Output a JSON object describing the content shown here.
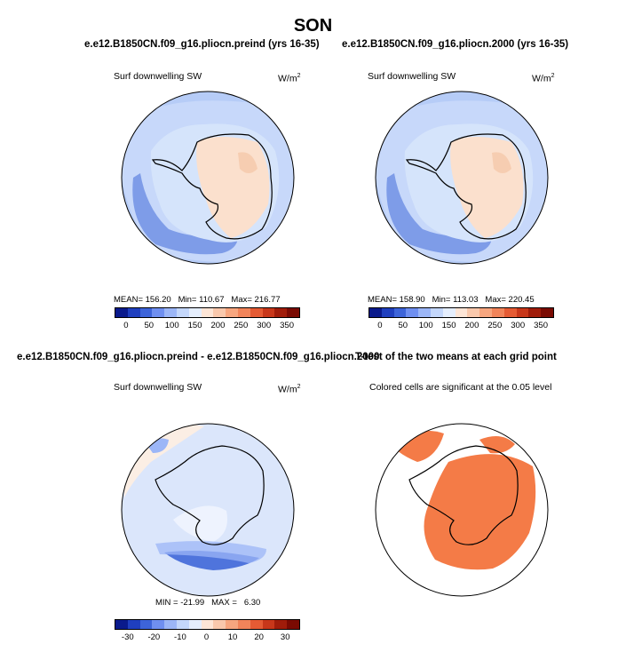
{
  "figure": {
    "title": "SON"
  },
  "chart_data": [
    {
      "type": "heatmap",
      "panel": "top-left",
      "title": "e.e12.B1850CN.f09_g16.pliocn.preind (yrs 16-35)",
      "field_label": "Surf downwelling SW",
      "units": "W/m",
      "units_superscript": "2",
      "stats": {
        "mean_label": "MEAN=",
        "mean": "156.20",
        "min_label": "Min=",
        "min": "110.67",
        "max_label": "Max=",
        "max": "216.77"
      },
      "colorbar_ticks": [
        "0",
        "50",
        "100",
        "150",
        "200",
        "250",
        "300",
        "350"
      ],
      "colorbar_range": [
        -25,
        375
      ]
    },
    {
      "type": "heatmap",
      "panel": "top-right",
      "title": "e.e12.B1850CN.f09_g16.pliocn.2000 (yrs 16-35)",
      "field_label": "Surf downwelling SW",
      "units": "W/m",
      "units_superscript": "2",
      "stats": {
        "mean_label": "MEAN=",
        "mean": "158.90",
        "min_label": "Min=",
        "min": "113.03",
        "max_label": "Max=",
        "max": "220.45"
      },
      "colorbar_ticks": [
        "0",
        "50",
        "100",
        "150",
        "200",
        "250",
        "300",
        "350"
      ],
      "colorbar_range": [
        -25,
        375
      ]
    },
    {
      "type": "heatmap",
      "panel": "bottom-left",
      "title": "e.e12.B1850CN.f09_g16.pliocn.preind - e.e12.B1850CN.f09_g16.pliocn.2000",
      "field_label": "Surf downwelling SW",
      "units": "W/m",
      "units_superscript": "2",
      "stats": {
        "min_label": "MIN =",
        "min": "-21.99",
        "max_label": "MAX =",
        "max": "6.30"
      },
      "colorbar_ticks": [
        "-30",
        "-20",
        "-10",
        "0",
        "10",
        "20",
        "30"
      ],
      "colorbar_range": [
        -35,
        35
      ]
    },
    {
      "type": "heatmap",
      "panel": "bottom-right",
      "title": "T-test of the two means at each grid point",
      "subtitle": "Colored cells are significant at the 0.05 level"
    }
  ],
  "colors": {
    "colorbar": [
      "#0a1a8c",
      "#1f3fbf",
      "#3d64d9",
      "#6f8ff0",
      "#9cb6f7",
      "#c4d7fb",
      "#e5eefd",
      "#fde5d6",
      "#f9c8ac",
      "#f7a67f",
      "#f1845a",
      "#e55b34",
      "#c8371a",
      "#a01c0a",
      "#7a0a02"
    ],
    "antarctic_light_blue": "#d5e4fb",
    "ocean_mid_blue": "#b6ccf7",
    "ocean_blue": "#9bb5f2",
    "ocean_deep_blue": "#7e9ce8",
    "land_peach": "#fbe0cd",
    "land_peach_dark": "#f6cdb1",
    "significant": "#f47b47",
    "diff_white": "#f4f6fe",
    "diff_light": "#dbe6fb",
    "diff_blue": "#4f74dc"
  }
}
